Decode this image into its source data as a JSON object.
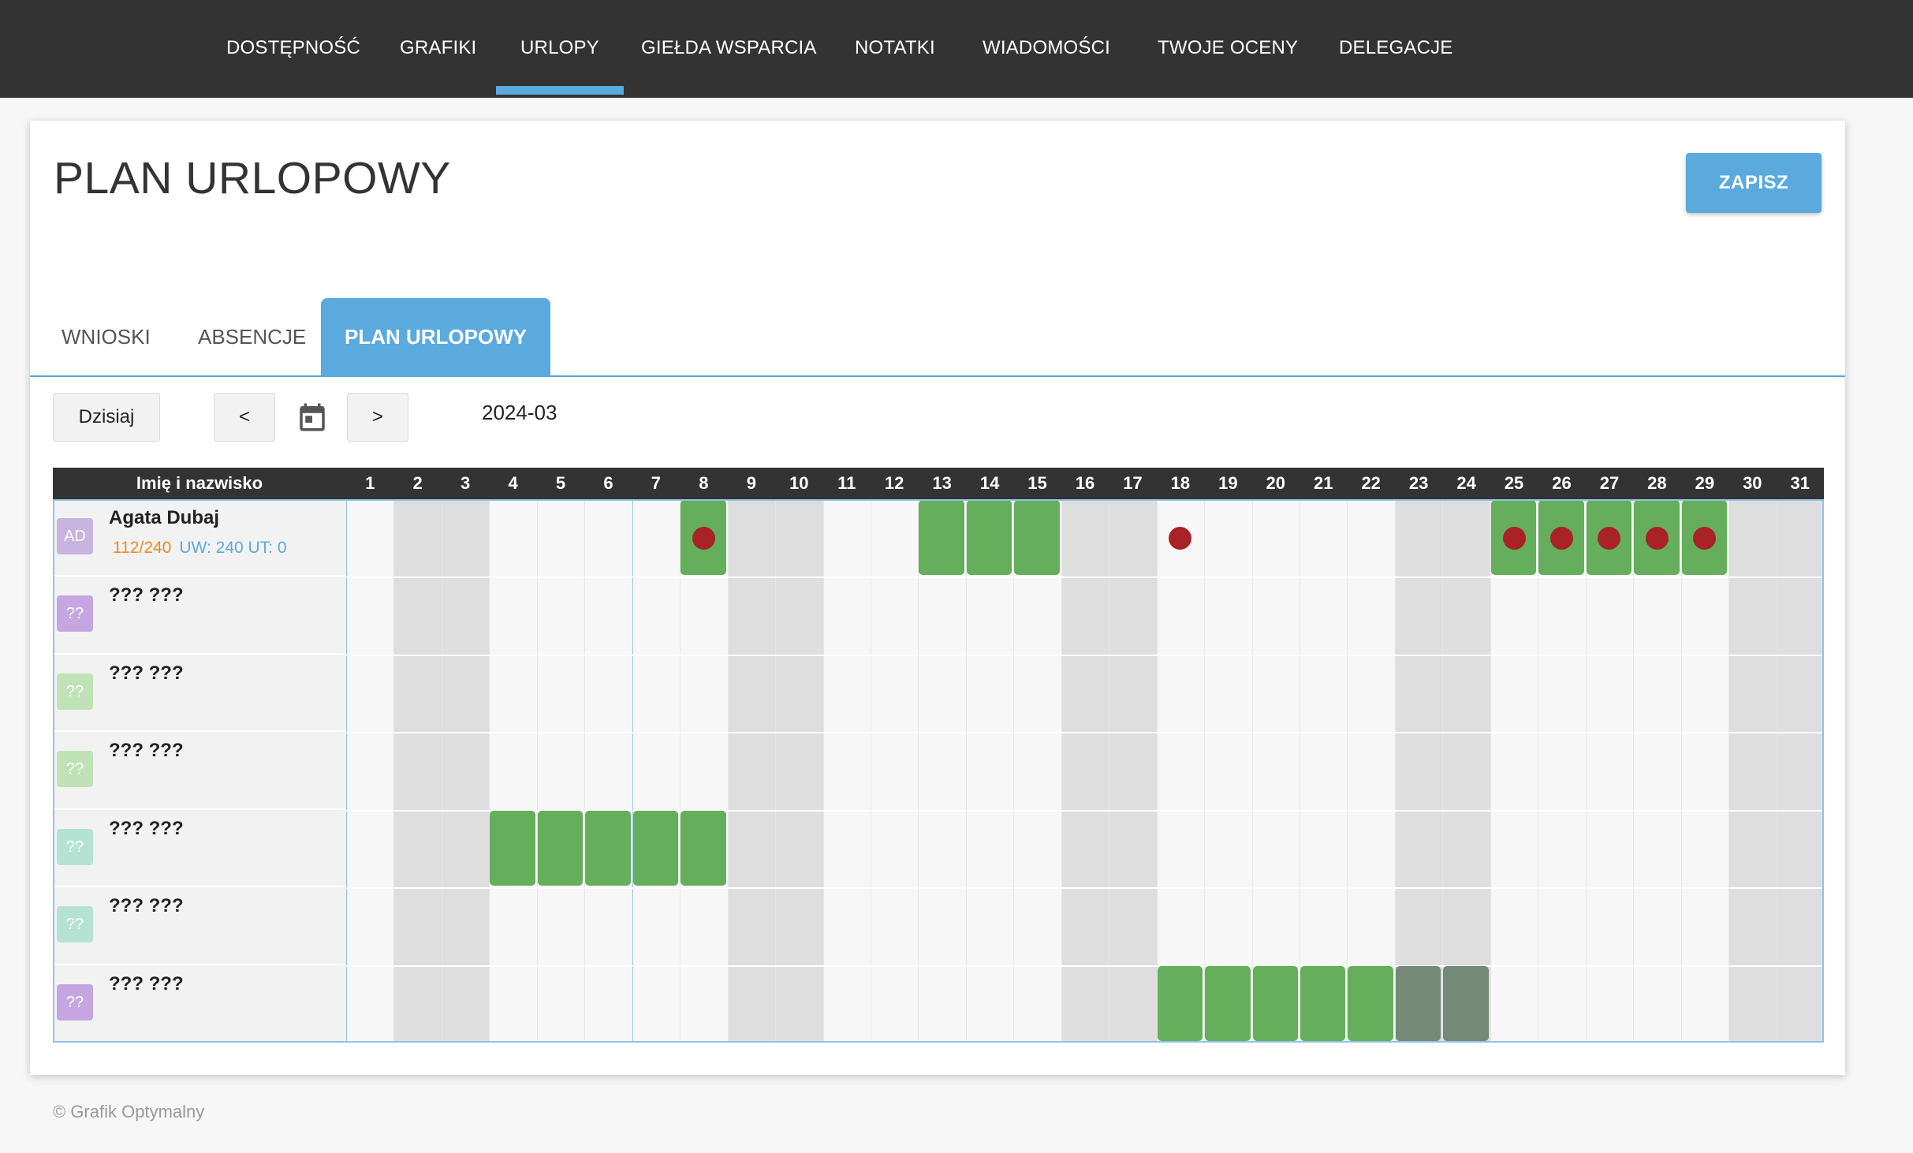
{
  "nav": {
    "items": [
      {
        "label": "DOSTĘPNOŚĆ",
        "active": false
      },
      {
        "label": "GRAFIKI",
        "active": false
      },
      {
        "label": "URLOPY",
        "active": true
      },
      {
        "label": "GIEŁDA WSPARCIA",
        "active": false
      },
      {
        "label": "NOTATKI",
        "active": false
      },
      {
        "label": "WIADOMOŚCI",
        "active": false
      },
      {
        "label": "TWOJE OCENY",
        "active": false
      },
      {
        "label": "DELEGACJE",
        "active": false
      }
    ]
  },
  "page": {
    "title": "PLAN URLOPOWY",
    "save_label": "ZAPISZ"
  },
  "tabs": [
    {
      "label": "WNIOSKI",
      "active": false
    },
    {
      "label": "ABSENCJE",
      "active": false
    },
    {
      "label": "PLAN URLOPOWY",
      "active": true
    }
  ],
  "toolbar": {
    "today_label": "Dzisiaj",
    "prev_label": "<",
    "next_label": ">",
    "calendar_icon": "calendar-icon",
    "month": "2024-03"
  },
  "grid": {
    "name_header": "Imię i nazwisko",
    "days": [
      1,
      2,
      3,
      4,
      5,
      6,
      7,
      8,
      9,
      10,
      11,
      12,
      13,
      14,
      15,
      16,
      17,
      18,
      19,
      20,
      21,
      22,
      23,
      24,
      25,
      26,
      27,
      28,
      29,
      30,
      31
    ],
    "weekend_days": [
      2,
      3,
      9,
      10,
      16,
      17,
      23,
      24,
      30,
      31
    ],
    "employees": [
      {
        "initials": "AD",
        "name": "Agata Dubaj",
        "avatar_color": "#c9b3e0",
        "stats": {
          "hours": "112/240",
          "uw_ut": "UW: 240 UT: 0"
        },
        "leave_days": [
          8,
          13,
          14,
          15,
          25,
          26,
          27,
          28,
          29
        ],
        "dark_leave_days": [],
        "holiday_dots": [
          8,
          18,
          25,
          26,
          27,
          28,
          29
        ]
      },
      {
        "initials": "??",
        "name": "??? ???",
        "avatar_color": "#c6a6e0",
        "leave_days": [],
        "dark_leave_days": [],
        "holiday_dots": []
      },
      {
        "initials": "??",
        "name": "??? ???",
        "avatar_color": "#bfe3b6",
        "leave_days": [],
        "dark_leave_days": [],
        "holiday_dots": []
      },
      {
        "initials": "??",
        "name": "??? ???",
        "avatar_color": "#bfe3b6",
        "leave_days": [],
        "dark_leave_days": [],
        "holiday_dots": []
      },
      {
        "initials": "??",
        "name": "??? ???",
        "avatar_color": "#b5e3d3",
        "leave_days": [
          4,
          5,
          6,
          7,
          8
        ],
        "dark_leave_days": [],
        "holiday_dots": []
      },
      {
        "initials": "??",
        "name": "??? ???",
        "avatar_color": "#b5e3d3",
        "leave_days": [],
        "dark_leave_days": [],
        "holiday_dots": []
      },
      {
        "initials": "??",
        "name": "??? ???",
        "avatar_color": "#c6a6e0",
        "leave_days": [
          18,
          19,
          20,
          21,
          22
        ],
        "dark_leave_days": [
          23,
          24
        ],
        "holiday_dots": []
      }
    ]
  },
  "colors": {
    "leave": "#65ae5c",
    "leave_dark": "#728a77",
    "weekend": "#dedede",
    "weekday": "#f7f7f7",
    "accent": "#5aaade",
    "hours": "#f08a24",
    "uw_ut": "#5aaade"
  },
  "footer": "© Grafik Optymalny"
}
